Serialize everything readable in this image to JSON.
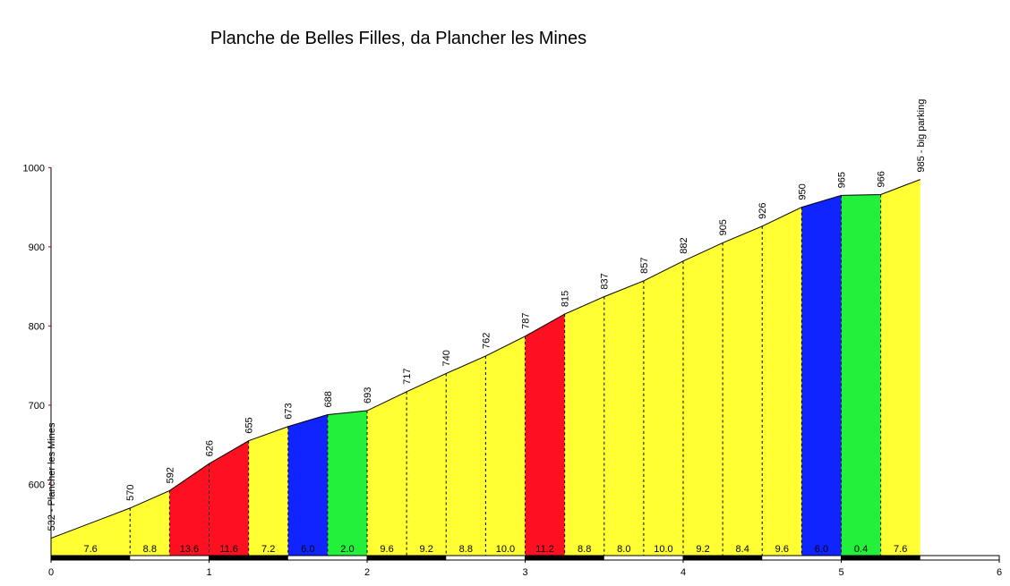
{
  "chart_data": {
    "type": "area",
    "title": "Planche de Belles Filles, da Plancher les Mines",
    "xlabel": "",
    "ylabel": "",
    "xlim": [
      0,
      6
    ],
    "ylim": [
      510,
      1000
    ],
    "x_ticks": [
      "0",
      "1",
      "2",
      "3",
      "4",
      "5",
      "6"
    ],
    "y_ticks": [
      "600",
      "700",
      "800",
      "900",
      "1000"
    ],
    "points": [
      {
        "x": 0.0,
        "y": 532,
        "label": "532 - Plancher les Mines"
      },
      {
        "x": 0.5,
        "y": 570,
        "label": "570"
      },
      {
        "x": 0.75,
        "y": 592,
        "label": "592"
      },
      {
        "x": 1.0,
        "y": 626,
        "label": "626"
      },
      {
        "x": 1.25,
        "y": 655,
        "label": "655"
      },
      {
        "x": 1.5,
        "y": 673,
        "label": "673"
      },
      {
        "x": 1.75,
        "y": 688,
        "label": "688"
      },
      {
        "x": 2.0,
        "y": 693,
        "label": "693"
      },
      {
        "x": 2.25,
        "y": 717,
        "label": "717"
      },
      {
        "x": 2.5,
        "y": 740,
        "label": "740"
      },
      {
        "x": 2.75,
        "y": 762,
        "label": "762"
      },
      {
        "x": 3.0,
        "y": 787,
        "label": "787"
      },
      {
        "x": 3.25,
        "y": 815,
        "label": "815"
      },
      {
        "x": 3.5,
        "y": 837,
        "label": "837"
      },
      {
        "x": 3.75,
        "y": 857,
        "label": "857"
      },
      {
        "x": 4.0,
        "y": 882,
        "label": "882"
      },
      {
        "x": 4.25,
        "y": 905,
        "label": "905"
      },
      {
        "x": 4.5,
        "y": 926,
        "label": "926"
      },
      {
        "x": 4.75,
        "y": 950,
        "label": "950"
      },
      {
        "x": 5.0,
        "y": 965,
        "label": "965"
      },
      {
        "x": 5.25,
        "y": 966,
        "label": "966"
      },
      {
        "x": 5.5,
        "y": 985,
        "label": "985 - big parking"
      }
    ],
    "segments": [
      {
        "x0": 0.0,
        "x1": 0.5,
        "grade": "7.6",
        "color": "#ffff33"
      },
      {
        "x0": 0.5,
        "x1": 0.75,
        "grade": "8.8",
        "color": "#ffff33"
      },
      {
        "x0": 0.75,
        "x1": 1.0,
        "grade": "13.6",
        "color": "#ff1020"
      },
      {
        "x0": 1.0,
        "x1": 1.25,
        "grade": "11.6",
        "color": "#ff1020"
      },
      {
        "x0": 1.25,
        "x1": 1.5,
        "grade": "7.2",
        "color": "#ffff33"
      },
      {
        "x0": 1.5,
        "x1": 1.75,
        "grade": "6.0",
        "color": "#1024ff"
      },
      {
        "x0": 1.75,
        "x1": 2.0,
        "grade": "2.0",
        "color": "#22f03a"
      },
      {
        "x0": 2.0,
        "x1": 2.25,
        "grade": "9.6",
        "color": "#ffff33"
      },
      {
        "x0": 2.25,
        "x1": 2.5,
        "grade": "9.2",
        "color": "#ffff33"
      },
      {
        "x0": 2.5,
        "x1": 2.75,
        "grade": "8.8",
        "color": "#ffff33"
      },
      {
        "x0": 2.75,
        "x1": 3.0,
        "grade": "10.0",
        "color": "#ffff33"
      },
      {
        "x0": 3.0,
        "x1": 3.25,
        "grade": "11.2",
        "color": "#ff1020"
      },
      {
        "x0": 3.25,
        "x1": 3.5,
        "grade": "8.8",
        "color": "#ffff33"
      },
      {
        "x0": 3.5,
        "x1": 3.75,
        "grade": "8.0",
        "color": "#ffff33"
      },
      {
        "x0": 3.75,
        "x1": 4.0,
        "grade": "10.0",
        "color": "#ffff33"
      },
      {
        "x0": 4.0,
        "x1": 4.25,
        "grade": "9.2",
        "color": "#ffff33"
      },
      {
        "x0": 4.25,
        "x1": 4.5,
        "grade": "8.4",
        "color": "#ffff33"
      },
      {
        "x0": 4.5,
        "x1": 4.75,
        "grade": "9.6",
        "color": "#ffff33"
      },
      {
        "x0": 4.75,
        "x1": 5.0,
        "grade": "6.0",
        "color": "#1024ff"
      },
      {
        "x0": 5.0,
        "x1": 5.25,
        "grade": "0.4",
        "color": "#22f03a"
      },
      {
        "x0": 5.25,
        "x1": 5.5,
        "grade": "7.6",
        "color": "#ffff33"
      }
    ],
    "grid": false,
    "colors": {
      "axis": "#000000",
      "y_tick": "#aa0000",
      "km_bar_dark": "#000000",
      "km_bar_light": "#ffffff"
    }
  }
}
